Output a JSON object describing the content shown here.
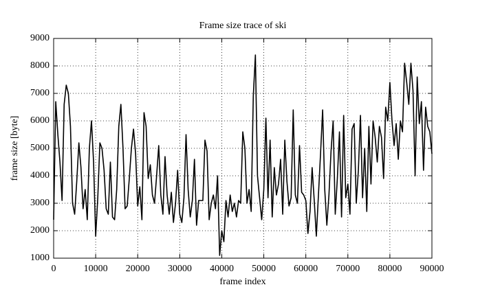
{
  "chart_data": {
    "type": "line",
    "title": "Frame size trace of ski",
    "x_label": "frame index",
    "y_label": "frame size [byte]",
    "color": "#000000",
    "grid": true,
    "xlim": [
      0,
      90000
    ],
    "xticks": [
      0,
      10000,
      20000,
      30000,
      40000,
      50000,
      60000,
      70000,
      80000,
      90000
    ],
    "ylim": [
      1000,
      9000
    ],
    "yticks": [
      1000,
      2000,
      3000,
      4000,
      5000,
      6000,
      7000,
      8000,
      9000
    ],
    "x": [
      0,
      500,
      1000,
      1500,
      2000,
      2500,
      3000,
      3500,
      4000,
      4500,
      5000,
      5500,
      6000,
      6500,
      7000,
      7500,
      8000,
      8500,
      9000,
      9500,
      10000,
      10500,
      11000,
      11500,
      12000,
      12500,
      13000,
      13500,
      14000,
      14500,
      15000,
      15500,
      16000,
      16500,
      17000,
      17500,
      18000,
      18500,
      19000,
      19500,
      20000,
      20500,
      21000,
      21500,
      22000,
      22500,
      23000,
      23500,
      24000,
      24500,
      25000,
      25500,
      26000,
      26500,
      27000,
      27500,
      28000,
      28500,
      29000,
      29500,
      30000,
      30500,
      31000,
      31500,
      32000,
      32500,
      33000,
      33500,
      34000,
      34500,
      35000,
      35500,
      36000,
      36500,
      37000,
      37500,
      38000,
      38500,
      39000,
      39500,
      40000,
      40500,
      41000,
      41500,
      42000,
      42500,
      43000,
      43500,
      44000,
      44500,
      45000,
      45500,
      46000,
      46500,
      47000,
      47500,
      48000,
      48500,
      49000,
      49500,
      50000,
      50500,
      51000,
      51500,
      52000,
      52500,
      53000,
      53500,
      54000,
      54500,
      55000,
      55500,
      56000,
      56500,
      57000,
      57500,
      58000,
      58500,
      59000,
      59500,
      60000,
      60500,
      61000,
      61500,
      62000,
      62500,
      63000,
      63500,
      64000,
      64500,
      65000,
      65500,
      66000,
      66500,
      67000,
      67500,
      68000,
      68500,
      69000,
      69500,
      70000,
      70500,
      71000,
      71500,
      72000,
      72500,
      73000,
      73500,
      74000,
      74500,
      75000,
      75500,
      76000,
      76500,
      77000,
      77500,
      78000,
      78500,
      79000,
      79500,
      80000,
      80500,
      81000,
      81500,
      82000,
      82500,
      83000,
      83500,
      84000,
      84500,
      85000,
      85500,
      86000,
      86500,
      87000,
      87500,
      88000,
      88500,
      89000,
      89500,
      90000
    ],
    "values": [
      2400,
      6700,
      5500,
      4500,
      3100,
      6600,
      7300,
      7000,
      5800,
      3000,
      2600,
      3800,
      5200,
      4300,
      2800,
      3500,
      2400,
      5000,
      6000,
      4500,
      1800,
      3200,
      5200,
      5000,
      4200,
      2800,
      2600,
      4500,
      2500,
      2400,
      3500,
      5800,
      6600,
      5000,
      2800,
      2900,
      3900,
      5000,
      5700,
      4800,
      2900,
      3600,
      2400,
      6300,
      5800,
      3900,
      4400,
      3300,
      3000,
      4000,
      5100,
      3300,
      2600,
      4700,
      3300,
      2600,
      3400,
      2300,
      3000,
      4200,
      2600,
      2300,
      3200,
      5500,
      3500,
      2500,
      3100,
      4600,
      2200,
      3100,
      3100,
      3100,
      5300,
      4900,
      2400,
      3000,
      3300,
      2800,
      4000,
      1100,
      2000,
      1600,
      3100,
      2500,
      3300,
      2700,
      3000,
      2500,
      3100,
      3000,
      5600,
      5000,
      3000,
      3500,
      2700,
      6900,
      8400,
      4000,
      3200,
      2400,
      3500,
      6100,
      3200,
      5300,
      2500,
      4300,
      3300,
      3700,
      4600,
      2600,
      5300,
      3800,
      2900,
      3200,
      6400,
      3300,
      3000,
      5100,
      3400,
      3300,
      3100,
      1900,
      2700,
      4300,
      3100,
      1800,
      3300,
      4800,
      6400,
      3500,
      2200,
      3300,
      4900,
      6000,
      2600,
      3900,
      5600,
      2500,
      6200,
      3200,
      3700,
      2600,
      5700,
      5900,
      3000,
      4200,
      6200,
      3200,
      5000,
      2700,
      5800,
      3700,
      6000,
      5400,
      4500,
      5800,
      5400,
      3900,
      6500,
      6000,
      7400,
      6000,
      5100,
      5900,
      4600,
      6000,
      5600,
      8100,
      7400,
      6600,
      8100,
      7100,
      4000,
      7600,
      5900,
      6700,
      4200,
      6500,
      5800,
      5600,
      4800
    ]
  }
}
